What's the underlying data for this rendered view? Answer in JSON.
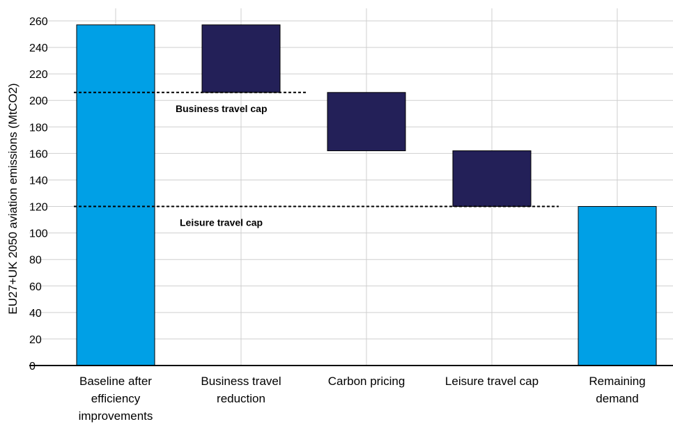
{
  "chart_data": {
    "type": "bar",
    "subtype": "waterfall",
    "ylabel": "EU27+UK 2050 aviation emissions (MtCO2)",
    "ylim": [
      0,
      260
    ],
    "yticks": [
      0,
      20,
      40,
      60,
      80,
      100,
      120,
      140,
      160,
      180,
      200,
      220,
      240,
      260
    ],
    "grid": true,
    "categories": [
      [
        "Baseline after",
        "efficiency",
        "improvements"
      ],
      [
        "Business travel",
        "reduction"
      ],
      [
        "Carbon pricing"
      ],
      [
        "Leisure travel cap"
      ],
      [
        "Remaining",
        "demand"
      ]
    ],
    "bars": [
      {
        "base": 0,
        "top": 257,
        "kind": "total"
      },
      {
        "base": 206,
        "top": 257,
        "kind": "reduction"
      },
      {
        "base": 162,
        "top": 206,
        "kind": "reduction"
      },
      {
        "base": 120,
        "top": 162,
        "kind": "reduction"
      },
      {
        "base": 0,
        "top": 120,
        "kind": "total"
      }
    ],
    "colors": {
      "total": "#00a0e6",
      "reduction": "#232058"
    },
    "annotations": [
      {
        "label": "Business travel cap",
        "value": 206,
        "from": 0,
        "to": 1
      },
      {
        "label": "Leisure travel cap",
        "value": 120,
        "from": 0,
        "to": 3
      }
    ]
  }
}
